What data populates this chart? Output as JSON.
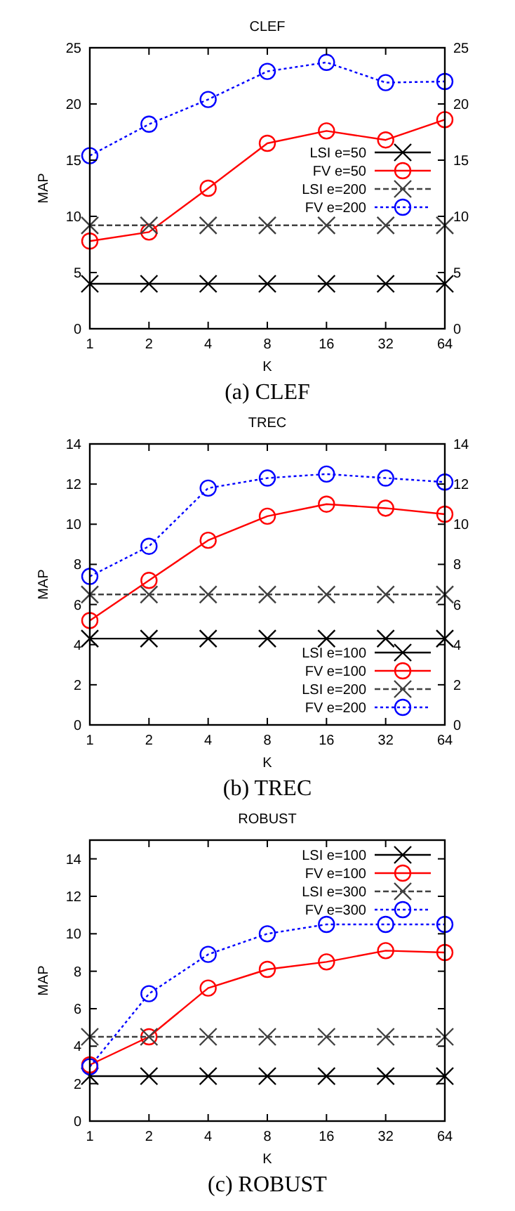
{
  "chart_data": [
    {
      "type": "line",
      "title": "CLEF",
      "xlabel": "K",
      "ylabel": "MAP",
      "categories": [
        "1",
        "2",
        "4",
        "8",
        "16",
        "32",
        "64"
      ],
      "ylim": [
        0,
        25
      ],
      "yticks": [
        0,
        5,
        10,
        15,
        20,
        25
      ],
      "y2lim": [
        0,
        25
      ],
      "y2ticks": [
        0,
        5,
        10,
        15,
        20,
        25
      ],
      "legend": "right",
      "annotations": [
        "(a) CLEF"
      ],
      "series": [
        {
          "name": "LSI e=50",
          "color": "#000000",
          "marker": "cross",
          "line_style": "solid",
          "values": [
            4,
            4,
            4,
            4,
            4,
            4,
            4
          ]
        },
        {
          "name": "FV e=50",
          "color": "#ff0000",
          "marker": "circle",
          "line_style": "solid",
          "values": [
            7.8,
            8.6,
            12.5,
            16.5,
            17.6,
            16.8,
            18.6
          ]
        },
        {
          "name": "LSI e=200",
          "color": "#404040",
          "marker": "cross",
          "line_style": "dashed",
          "values": [
            9.2,
            9.2,
            9.2,
            9.2,
            9.2,
            9.2,
            9.2
          ]
        },
        {
          "name": "FV e=200",
          "color": "#0000ff",
          "marker": "circle",
          "line_style": "dotted",
          "values": [
            15.4,
            18.2,
            20.4,
            22.9,
            23.7,
            21.9,
            22.0
          ]
        }
      ]
    },
    {
      "type": "line",
      "title": "TREC",
      "xlabel": "K",
      "ylabel": "MAP",
      "categories": [
        "1",
        "2",
        "4",
        "8",
        "16",
        "32",
        "64"
      ],
      "ylim": [
        0,
        14
      ],
      "yticks": [
        0,
        2,
        4,
        6,
        8,
        10,
        12,
        14
      ],
      "y2lim": [
        0,
        14
      ],
      "y2ticks": [
        0,
        2,
        4,
        6,
        8,
        10,
        12,
        14
      ],
      "legend": "bottom right",
      "annotations": [
        "(b) TREC"
      ],
      "series": [
        {
          "name": "LSI e=100",
          "color": "#000000",
          "marker": "cross",
          "line_style": "solid",
          "values": [
            4.3,
            4.3,
            4.3,
            4.3,
            4.3,
            4.3,
            4.3
          ]
        },
        {
          "name": "FV e=100",
          "color": "#ff0000",
          "marker": "circle",
          "line_style": "solid",
          "values": [
            5.2,
            7.2,
            9.2,
            10.4,
            11.0,
            10.8,
            10.5
          ]
        },
        {
          "name": "LSI e=200",
          "color": "#404040",
          "marker": "cross",
          "line_style": "dashed",
          "values": [
            6.5,
            6.5,
            6.5,
            6.5,
            6.5,
            6.5,
            6.5
          ]
        },
        {
          "name": "FV e=200",
          "color": "#0000ff",
          "marker": "circle",
          "line_style": "dotted",
          "values": [
            7.4,
            8.9,
            11.8,
            12.3,
            12.5,
            12.3,
            12.1
          ]
        }
      ]
    },
    {
      "type": "line",
      "title": "ROBUST",
      "xlabel": "K",
      "ylabel": "MAP",
      "categories": [
        "1",
        "2",
        "4",
        "8",
        "16",
        "32",
        "64"
      ],
      "ylim": [
        0,
        15
      ],
      "yticks": [
        0,
        2,
        4,
        6,
        8,
        10,
        12,
        14
      ],
      "legend": "top right",
      "annotations": [
        "(c) ROBUST"
      ],
      "series": [
        {
          "name": "LSI e=100",
          "color": "#000000",
          "marker": "cross",
          "line_style": "solid",
          "values": [
            2.4,
            2.4,
            2.4,
            2.4,
            2.4,
            2.4,
            2.4
          ]
        },
        {
          "name": "FV e=100",
          "color": "#ff0000",
          "marker": "circle",
          "line_style": "solid",
          "values": [
            3.0,
            4.5,
            7.1,
            8.1,
            8.5,
            9.1,
            9.0
          ]
        },
        {
          "name": "LSI e=300",
          "color": "#404040",
          "marker": "cross",
          "line_style": "dashed",
          "values": [
            4.5,
            4.5,
            4.5,
            4.5,
            4.5,
            4.5,
            4.5
          ]
        },
        {
          "name": "FV e=300",
          "color": "#0000ff",
          "marker": "circle",
          "line_style": "dotted",
          "values": [
            2.9,
            6.8,
            8.9,
            10.0,
            10.5,
            10.5,
            10.5
          ]
        }
      ]
    }
  ]
}
